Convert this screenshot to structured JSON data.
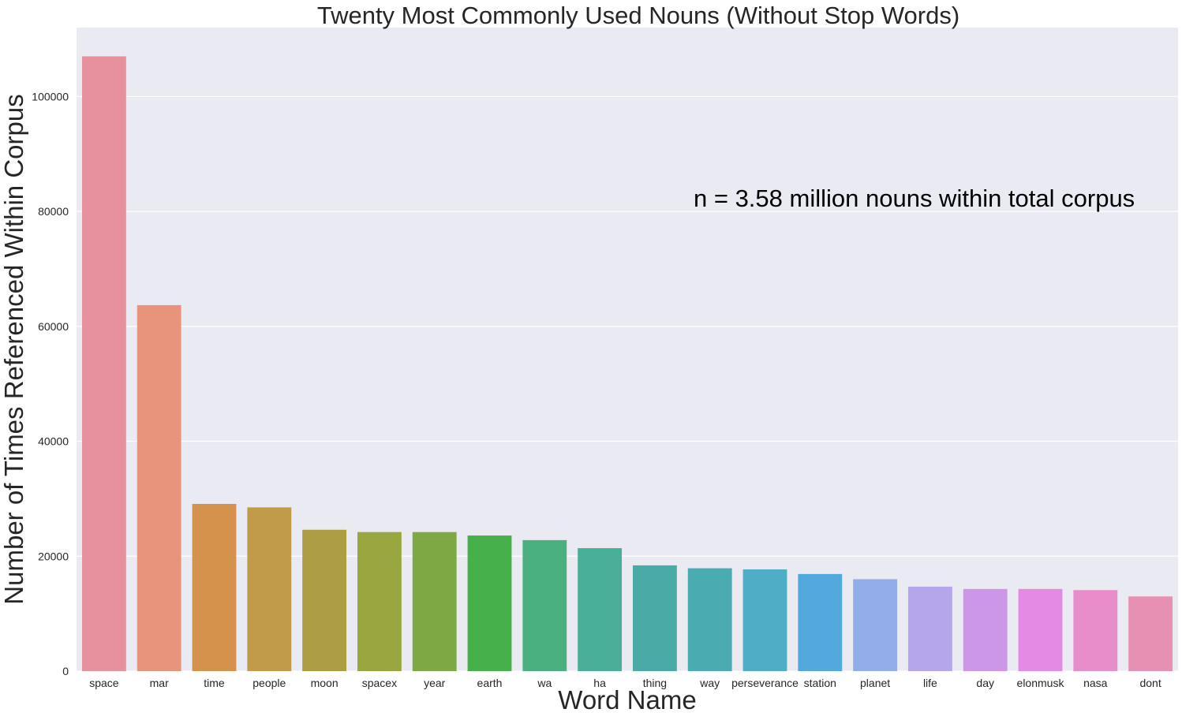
{
  "chart_data": {
    "type": "bar",
    "title": "Twenty Most Commonly Used Nouns (Without Stop Words)",
    "xlabel": "Word Name",
    "ylabel": "Number of Times Referenced Within Corpus",
    "annotation": "n = 3.58 million nouns within total corpus",
    "ylim": [
      0,
      112000
    ],
    "yticks": [
      0,
      20000,
      40000,
      60000,
      80000,
      100000
    ],
    "ytick_labels": [
      "0",
      "20000",
      "40000",
      "60000",
      "80000",
      "100000"
    ],
    "grid": true,
    "categories": [
      "space",
      "mar",
      "time",
      "people",
      "moon",
      "spacex",
      "year",
      "earth",
      "wa",
      "ha",
      "thing",
      "way",
      "perseverance",
      "station",
      "planet",
      "life",
      "day",
      "elonmusk",
      "nasa",
      "dont"
    ],
    "values": [
      107000,
      63700,
      29100,
      28500,
      24600,
      24200,
      24200,
      23600,
      22800,
      21400,
      18400,
      17900,
      17700,
      16900,
      16000,
      14700,
      14300,
      14300,
      14100,
      13000
    ],
    "colors": [
      "#e8919e",
      "#e8947d",
      "#d5924d",
      "#c19b4a",
      "#ad9d44",
      "#9aa63f",
      "#7ea843",
      "#46b04a",
      "#4ab07f",
      "#4aaf98",
      "#4aaaa5",
      "#4aabb1",
      "#4eaec6",
      "#54a9dc",
      "#93adea",
      "#b5a6ec",
      "#cd97e8",
      "#e48ae4",
      "#e68dca",
      "#e691b3"
    ]
  }
}
